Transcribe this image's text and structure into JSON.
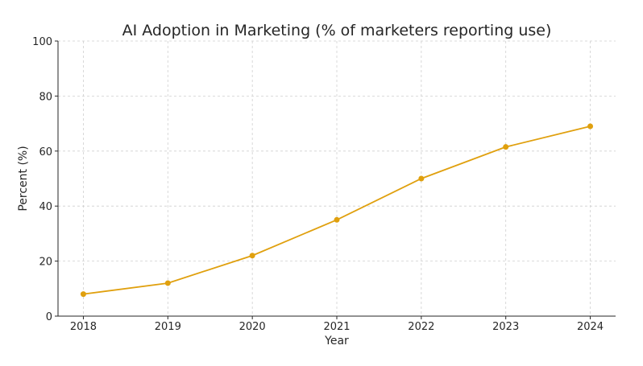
{
  "chart_data": {
    "type": "line",
    "title": "AI Adoption in Marketing (% of marketers reporting use)",
    "xlabel": "Year",
    "ylabel": "Percent (%)",
    "x": [
      2018,
      2019,
      2020,
      2021,
      2022,
      2023,
      2024
    ],
    "x_tick_labels": [
      "2018",
      "2019",
      "2020",
      "2021",
      "2022",
      "2023",
      "2024"
    ],
    "y_tick_labels": [
      "0",
      "20",
      "40",
      "60",
      "80",
      "100"
    ],
    "y_ticks": [
      0,
      20,
      40,
      60,
      80,
      100
    ],
    "series": [
      {
        "values": [
          8,
          12,
          22,
          35,
          50,
          61.5,
          69
        ],
        "color": "#E0A00E",
        "marker": "circle"
      }
    ],
    "xlim": [
      2017.7,
      2024.3
    ],
    "ylim": [
      0,
      100
    ],
    "grid": true,
    "grid_style": "dashed"
  }
}
